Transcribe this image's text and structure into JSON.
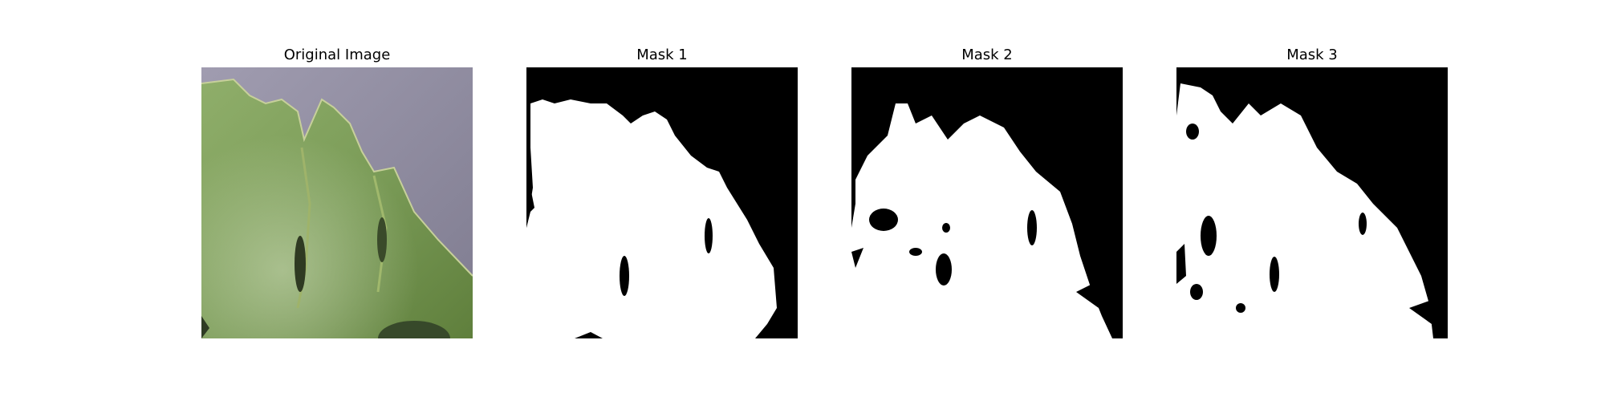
{
  "panels": [
    {
      "title": "Original Image",
      "content": "leaf-photo"
    },
    {
      "title": "Mask 1",
      "content": "binary-mask"
    },
    {
      "title": "Mask 2",
      "content": "binary-mask"
    },
    {
      "title": "Mask 3",
      "content": "binary-mask"
    }
  ],
  "colors": {
    "background": "#8f8d9e",
    "leaf_dark": "#6a8f45",
    "leaf_light": "#9cb67a",
    "mask_fg": "#ffffff",
    "mask_bg": "#000000"
  }
}
